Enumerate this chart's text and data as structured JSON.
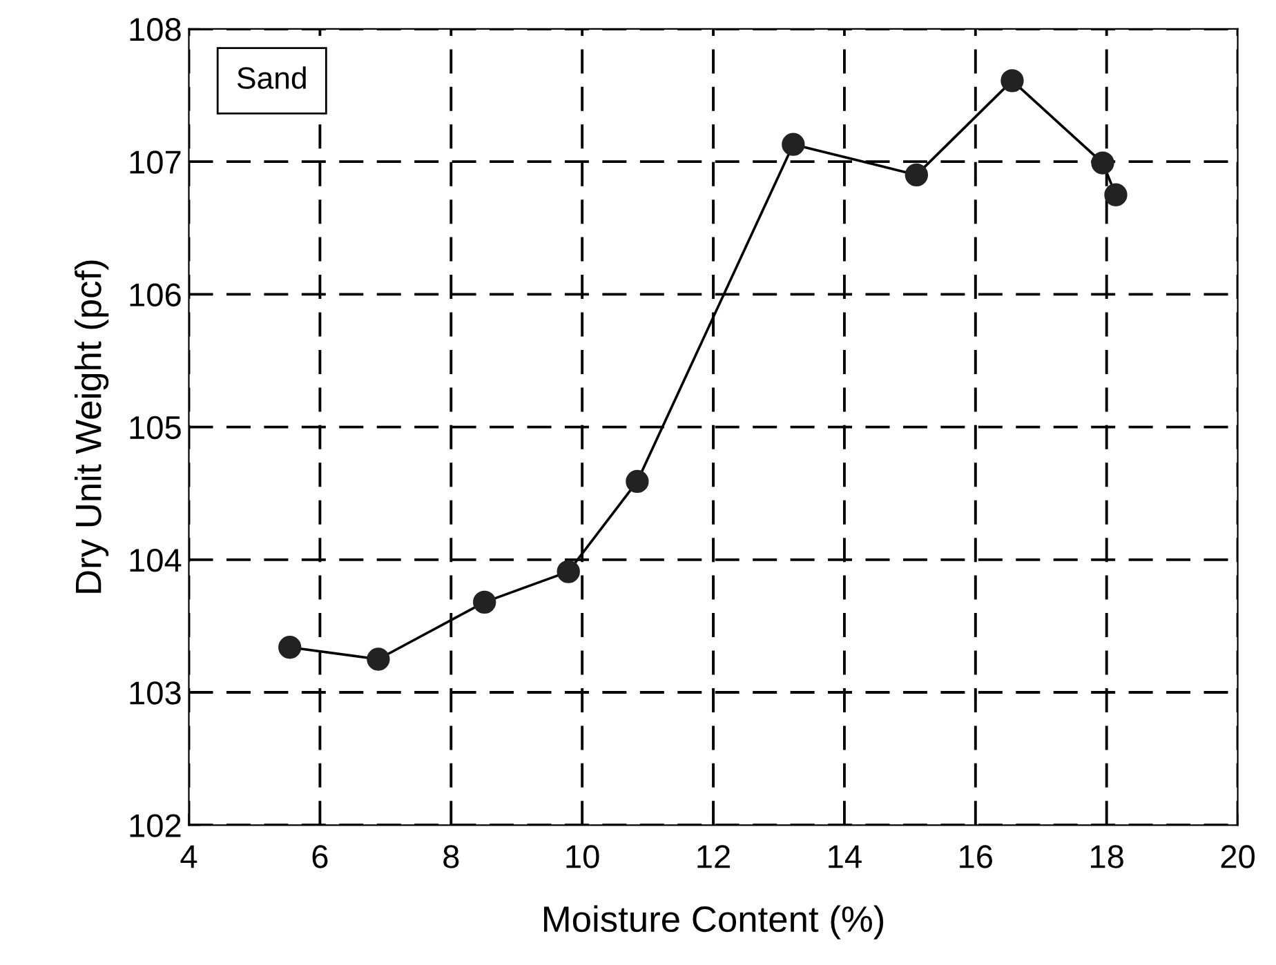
{
  "chart_data": {
    "type": "line",
    "xlabel": "Moisture Content (%)",
    "ylabel": "Dry Unit Weight (pcf)",
    "annotations": [
      "Sand"
    ],
    "series": [
      {
        "color": "#222222",
        "x": [
          5.54,
          6.89,
          8.51,
          9.79,
          10.84,
          13.22,
          15.1,
          16.56,
          17.94,
          18.14
        ],
        "values": [
          103.34,
          103.25,
          103.68,
          103.91,
          104.59,
          107.13,
          106.9,
          107.61,
          106.99,
          106.75
        ]
      }
    ],
    "xlim": [
      4,
      20
    ],
    "xticks": [
      4,
      6,
      8,
      10,
      12,
      14,
      16,
      18,
      20
    ],
    "ylim": [
      102,
      108
    ],
    "yticks": [
      102,
      103,
      104,
      105,
      106,
      107,
      108
    ],
    "grid": true,
    "marker": "circle",
    "line_style": "solid",
    "legend": false
  }
}
